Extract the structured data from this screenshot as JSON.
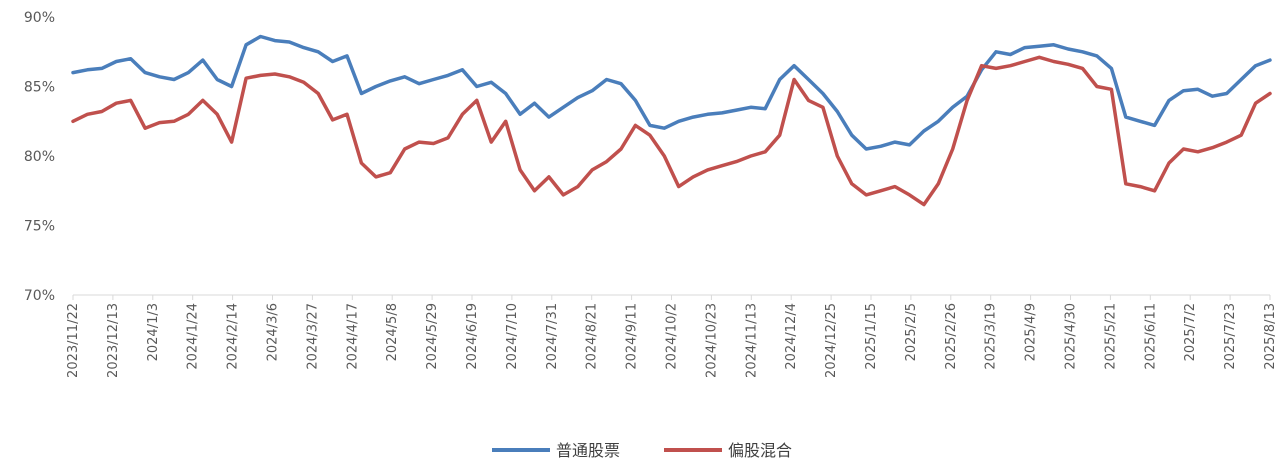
{
  "chart_data": {
    "type": "line",
    "title": "",
    "xlabel": "",
    "ylabel": "",
    "y_unit": "%",
    "ylim": [
      70,
      90
    ],
    "y_ticks": [
      "70%",
      "75%",
      "80%",
      "85%",
      "90%"
    ],
    "x_tick_labels": [
      "2023/11/22",
      "2023/12/13",
      "2024/1/3",
      "2024/1/24",
      "2024/2/14",
      "2024/3/6",
      "2024/3/27",
      "2024/4/17",
      "2024/5/8",
      "2024/5/29",
      "2024/6/19",
      "2024/7/10",
      "2024/7/31",
      "2024/8/21",
      "2024/9/11",
      "2024/10/2",
      "2024/10/23",
      "2024/11/13",
      "2024/12/4",
      "2024/12/25",
      "2025/1/15",
      "2025/2/5",
      "2025/2/26",
      "2025/3/19",
      "2025/4/9",
      "2025/4/30",
      "2025/5/21",
      "2025/6/11",
      "2025/7/2",
      "2025/7/23",
      "2025/8/13"
    ],
    "grid": false,
    "legend_position": "bottom",
    "series": [
      {
        "name": "普通股票",
        "color": "#4a7ebb",
        "values": [
          86.0,
          86.2,
          86.3,
          86.8,
          87.0,
          86.0,
          85.7,
          85.5,
          86.0,
          86.9,
          85.5,
          85.0,
          88.0,
          88.6,
          88.3,
          88.2,
          87.8,
          87.5,
          86.8,
          87.2,
          84.5,
          85.0,
          85.4,
          85.7,
          85.2,
          85.5,
          85.8,
          86.2,
          85.0,
          85.3,
          84.5,
          83.0,
          83.8,
          82.8,
          83.5,
          84.2,
          84.7,
          85.5,
          85.2,
          84.0,
          82.2,
          82.0,
          82.5,
          82.8,
          83.0,
          83.1,
          83.3,
          83.5,
          83.4,
          85.5,
          86.5,
          85.5,
          84.5,
          83.2,
          81.5,
          80.5,
          80.7,
          81.0,
          80.8,
          81.8,
          82.5,
          83.5,
          84.3,
          86.2,
          87.5,
          87.3,
          87.8,
          87.9,
          88.0,
          87.7,
          87.5,
          87.2,
          86.3,
          82.8,
          82.5,
          82.2,
          84.0,
          84.7,
          84.8,
          84.3,
          84.5,
          85.5,
          86.5,
          86.9
        ]
      },
      {
        "name": "偏股混合",
        "color": "#c0504d",
        "values": [
          82.5,
          83.0,
          83.2,
          83.8,
          84.0,
          82.0,
          82.4,
          82.5,
          83.0,
          84.0,
          83.0,
          81.0,
          85.6,
          85.8,
          85.9,
          85.7,
          85.3,
          84.5,
          82.6,
          83.0,
          79.5,
          78.5,
          78.8,
          80.5,
          81.0,
          80.9,
          81.3,
          83.0,
          84.0,
          81.0,
          82.5,
          79.0,
          77.5,
          78.5,
          77.2,
          77.8,
          79.0,
          79.6,
          80.5,
          82.2,
          81.5,
          80.0,
          77.8,
          78.5,
          79.0,
          79.3,
          79.6,
          80.0,
          80.3,
          81.5,
          85.5,
          84.0,
          83.5,
          80.0,
          78.0,
          77.2,
          77.5,
          77.8,
          77.2,
          76.5,
          78.0,
          80.5,
          84.0,
          86.5,
          86.3,
          86.5,
          86.8,
          87.1,
          86.8,
          86.6,
          86.3,
          85.0,
          84.8,
          78.0,
          77.8,
          77.5,
          79.5,
          80.5,
          80.3,
          80.6,
          81.0,
          81.5,
          83.8,
          84.5
        ]
      }
    ]
  }
}
